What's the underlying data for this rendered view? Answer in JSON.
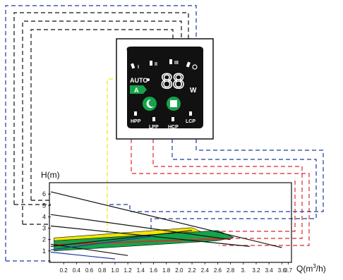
{
  "panel": {
    "mode_labels": [
      "I",
      "II",
      "III"
    ],
    "auto_label": "AUTO",
    "a_label": "A",
    "digits": "88",
    "unit": "W",
    "bottom_labels": [
      "HPP",
      "LPP",
      "HCP",
      "LCP"
    ],
    "icon_names": [
      "night-mode-icon",
      "stop-icon",
      "moon-icon"
    ]
  },
  "chart_data": {
    "type": "line",
    "title": "",
    "ylabel": "H(m)",
    "xlabel_prefix": "Q(m",
    "xlabel_sup": "3",
    "xlabel_suffix": "/h)",
    "x_ticks": [
      "0.2",
      "0.4",
      "0.6",
      "0.8",
      "1.0",
      "1.2",
      "1.4",
      "1.6",
      "1.8",
      "2.0",
      "2.2",
      "2.4",
      "2.6",
      "2.8",
      "3.",
      "3.2",
      "3.4",
      "3.6",
      "3.7"
    ],
    "y_ticks": [
      "1",
      "2",
      "3",
      "4",
      "5",
      "6"
    ],
    "xlim": [
      0,
      3.75
    ],
    "ylim": [
      0,
      7
    ],
    "series": [
      {
        "color": "#111111",
        "x": [
          0,
          3.6
        ],
        "y": [
          6.2,
          1.3
        ]
      },
      {
        "color": "#111111",
        "x": [
          0,
          2.8
        ],
        "y": [
          4.2,
          2.0
        ]
      },
      {
        "color": "#111111",
        "x": [
          0,
          3.1
        ],
        "y": [
          3.2,
          1.4
        ]
      },
      {
        "color": "#111111",
        "x": [
          0,
          1.2
        ],
        "y": [
          1.6,
          0.6
        ]
      },
      {
        "color": "#111111",
        "x": [
          0,
          2.2
        ],
        "y": [
          1.4,
          2.8
        ]
      },
      {
        "color": "#1f3a9e",
        "x": [
          0,
          1.0
        ],
        "y": [
          0.9,
          0.3
        ]
      },
      {
        "color": "#1f3a9e",
        "x": [
          0,
          1.6
        ],
        "y": [
          1.1,
          2.3
        ]
      }
    ],
    "bands": [
      {
        "name": "",
        "color": "#f2e600",
        "x": [
          0.05,
          2.2,
          2.5
        ],
        "upper": [
          2.15,
          3.05,
          2.3
        ],
        "lower": [
          1.85,
          2.55,
          2.3
        ]
      },
      {
        "name": "",
        "color": "#16a34a",
        "x": [
          0.05,
          2.6,
          2.85
        ],
        "upper": [
          1.9,
          2.8,
          2.2
        ],
        "lower": [
          1.0,
          1.9,
          2.2
        ]
      }
    ],
    "red_line": {
      "color": "#e0252b",
      "x": [
        0.05,
        2.8
      ],
      "y": [
        1.55,
        2.1
      ]
    },
    "dash_colors": {
      "black": "#111111",
      "blue": "#1f3a9e",
      "red": "#e0252b",
      "yellow": "#f2e600"
    }
  }
}
